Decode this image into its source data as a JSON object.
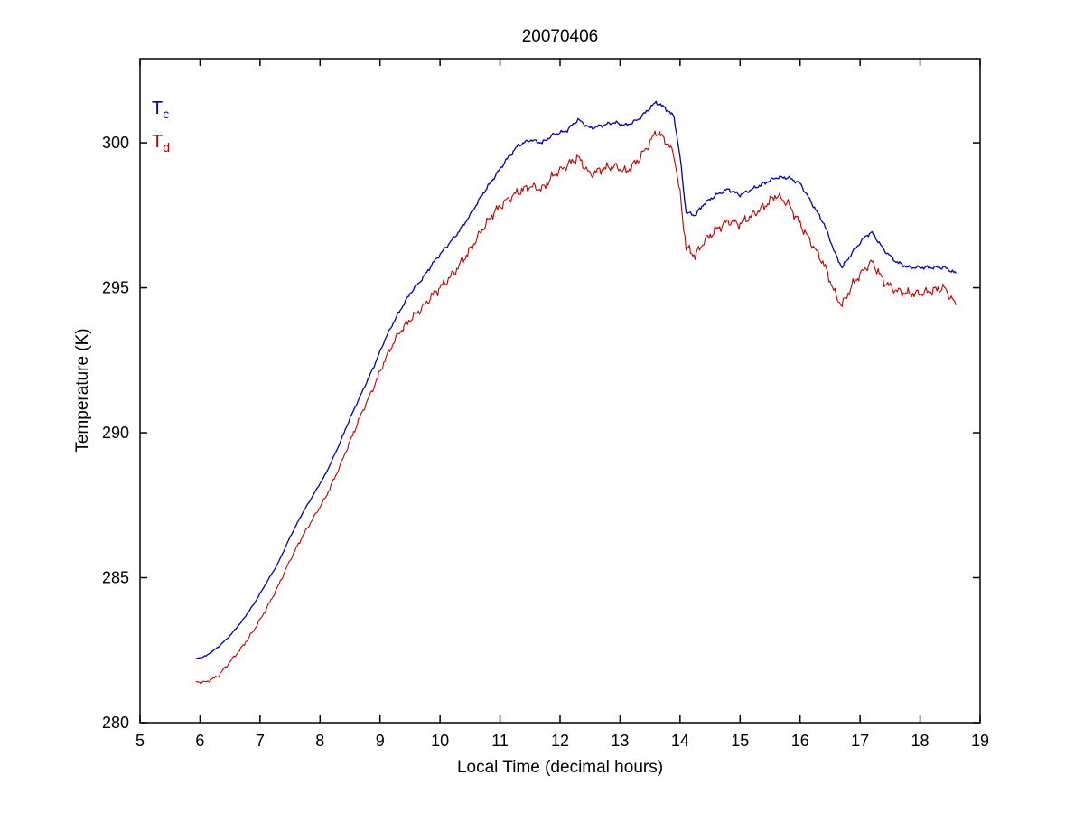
{
  "figure": {
    "title": "20070406",
    "xlabel": "Local Time (decimal hours)",
    "ylabel": "Temperature (K)"
  },
  "chart_data": {
    "type": "line",
    "title": "20070406",
    "xlabel": "Local Time (decimal hours)",
    "ylabel": "Temperature (K)",
    "xlim": [
      5,
      19
    ],
    "ylim": [
      280,
      302.9
    ],
    "xticks": [
      5,
      6,
      7,
      8,
      9,
      10,
      11,
      12,
      13,
      14,
      15,
      16,
      17,
      18,
      19
    ],
    "yticks": [
      280,
      285,
      290,
      295,
      300
    ],
    "grid": false,
    "legend_position": "top-left-inside",
    "series": [
      {
        "name": "T_c",
        "label_main": "T",
        "label_sub": "c",
        "color": "#0000b0",
        "noise_amplitude": 0.07,
        "points": [
          [
            5.93,
            282.2
          ],
          [
            6.1,
            282.3
          ],
          [
            6.3,
            282.6
          ],
          [
            6.5,
            283.0
          ],
          [
            6.7,
            283.5
          ],
          [
            6.9,
            284.1
          ],
          [
            7.1,
            284.8
          ],
          [
            7.3,
            285.5
          ],
          [
            7.5,
            286.4
          ],
          [
            7.7,
            287.2
          ],
          [
            7.9,
            287.9
          ],
          [
            8.1,
            288.6
          ],
          [
            8.3,
            289.5
          ],
          [
            8.5,
            290.5
          ],
          [
            8.7,
            291.4
          ],
          [
            8.9,
            292.3
          ],
          [
            9.1,
            293.3
          ],
          [
            9.3,
            294.1
          ],
          [
            9.5,
            294.8
          ],
          [
            9.7,
            295.3
          ],
          [
            9.9,
            295.9
          ],
          [
            10.1,
            296.4
          ],
          [
            10.3,
            296.9
          ],
          [
            10.5,
            297.5
          ],
          [
            10.7,
            298.2
          ],
          [
            10.9,
            298.8
          ],
          [
            11.1,
            299.4
          ],
          [
            11.3,
            299.9
          ],
          [
            11.5,
            300.1
          ],
          [
            11.7,
            300.0
          ],
          [
            11.9,
            300.3
          ],
          [
            12.1,
            300.4
          ],
          [
            12.3,
            300.8
          ],
          [
            12.5,
            300.5
          ],
          [
            12.7,
            300.6
          ],
          [
            12.9,
            300.7
          ],
          [
            13.1,
            300.6
          ],
          [
            13.3,
            300.8
          ],
          [
            13.5,
            301.2
          ],
          [
            13.6,
            301.4
          ],
          [
            13.75,
            301.2
          ],
          [
            13.9,
            300.9
          ],
          [
            14.0,
            299.5
          ],
          [
            14.1,
            297.6
          ],
          [
            14.25,
            297.5
          ],
          [
            14.4,
            297.9
          ],
          [
            14.6,
            298.2
          ],
          [
            14.8,
            298.4
          ],
          [
            15.0,
            298.2
          ],
          [
            15.2,
            298.4
          ],
          [
            15.4,
            298.6
          ],
          [
            15.6,
            298.8
          ],
          [
            15.8,
            298.8
          ],
          [
            16.0,
            298.6
          ],
          [
            16.2,
            297.9
          ],
          [
            16.4,
            297.2
          ],
          [
            16.6,
            296.1
          ],
          [
            16.7,
            295.7
          ],
          [
            16.9,
            296.3
          ],
          [
            17.1,
            296.8
          ],
          [
            17.2,
            296.9
          ],
          [
            17.4,
            296.3
          ],
          [
            17.6,
            295.9
          ],
          [
            17.8,
            295.7
          ],
          [
            18.0,
            295.7
          ],
          [
            18.2,
            295.7
          ],
          [
            18.4,
            295.7
          ],
          [
            18.6,
            295.5
          ]
        ]
      },
      {
        "name": "T_d",
        "label_main": "T",
        "label_sub": "d",
        "color": "#c00000",
        "noise_amplitude": 0.18,
        "points": [
          [
            5.93,
            281.4
          ],
          [
            6.1,
            281.4
          ],
          [
            6.3,
            281.6
          ],
          [
            6.5,
            282.1
          ],
          [
            6.7,
            282.6
          ],
          [
            6.9,
            283.2
          ],
          [
            7.1,
            283.9
          ],
          [
            7.3,
            284.7
          ],
          [
            7.5,
            285.6
          ],
          [
            7.7,
            286.4
          ],
          [
            7.9,
            287.1
          ],
          [
            8.1,
            287.8
          ],
          [
            8.3,
            288.7
          ],
          [
            8.5,
            289.7
          ],
          [
            8.7,
            290.7
          ],
          [
            8.9,
            291.6
          ],
          [
            9.1,
            292.6
          ],
          [
            9.3,
            293.4
          ],
          [
            9.5,
            293.9
          ],
          [
            9.7,
            294.3
          ],
          [
            9.9,
            294.8
          ],
          [
            10.1,
            295.2
          ],
          [
            10.3,
            295.7
          ],
          [
            10.5,
            296.3
          ],
          [
            10.7,
            297.0
          ],
          [
            10.9,
            297.6
          ],
          [
            11.1,
            298.0
          ],
          [
            11.3,
            298.3
          ],
          [
            11.5,
            298.5
          ],
          [
            11.7,
            298.4
          ],
          [
            11.9,
            298.9
          ],
          [
            12.1,
            299.2
          ],
          [
            12.3,
            299.5
          ],
          [
            12.5,
            298.9
          ],
          [
            12.7,
            299.1
          ],
          [
            12.9,
            299.2
          ],
          [
            13.1,
            299.0
          ],
          [
            13.3,
            299.4
          ],
          [
            13.5,
            300.0
          ],
          [
            13.6,
            300.4
          ],
          [
            13.75,
            300.1
          ],
          [
            13.9,
            299.6
          ],
          [
            14.0,
            298.2
          ],
          [
            14.1,
            296.4
          ],
          [
            14.25,
            296.1
          ],
          [
            14.4,
            296.6
          ],
          [
            14.6,
            297.0
          ],
          [
            14.8,
            297.3
          ],
          [
            15.0,
            297.2
          ],
          [
            15.2,
            297.5
          ],
          [
            15.4,
            297.8
          ],
          [
            15.6,
            298.2
          ],
          [
            15.8,
            297.9
          ],
          [
            16.0,
            297.2
          ],
          [
            16.2,
            296.5
          ],
          [
            16.4,
            295.8
          ],
          [
            16.6,
            294.7
          ],
          [
            16.7,
            294.4
          ],
          [
            16.9,
            295.2
          ],
          [
            17.1,
            295.7
          ],
          [
            17.2,
            295.9
          ],
          [
            17.4,
            295.2
          ],
          [
            17.6,
            294.9
          ],
          [
            17.8,
            294.8
          ],
          [
            18.0,
            294.8
          ],
          [
            18.2,
            294.9
          ],
          [
            18.4,
            295.0
          ],
          [
            18.6,
            294.4
          ]
        ]
      }
    ]
  }
}
